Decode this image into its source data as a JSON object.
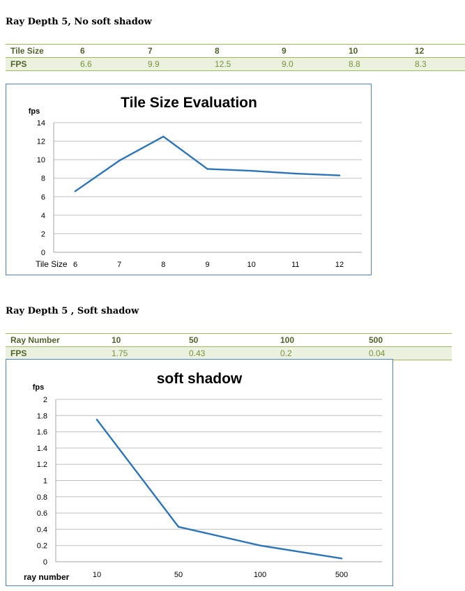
{
  "section1": {
    "heading": "Ray Depth 5, No soft shadow",
    "table": {
      "header": [
        "Tile Size",
        "6",
        "7",
        "8",
        "9",
        "10",
        "12"
      ],
      "row": [
        "FPS",
        "6.6",
        "9.9",
        "12.5",
        "9.0",
        "8.8",
        "8.3"
      ]
    }
  },
  "section2": {
    "heading": "Ray Depth 5 , Soft shadow",
    "table": {
      "header": [
        "Ray Number",
        "10",
        "50",
        "100",
        "500"
      ],
      "row": [
        "FPS",
        "1.75",
        "0.43",
        "0.2",
        "0.04"
      ]
    }
  },
  "colors": {
    "line": "#2e75b6",
    "grid": "#c0c0c0",
    "border": "#4f81bd",
    "table_accent": "#9bbb59",
    "table_fill": "#ebf1de"
  },
  "chart_data": [
    {
      "type": "line",
      "title": "Tile Size Evaluation",
      "ylabel": "fps",
      "xlabel": "Tile Size",
      "categories": [
        "6",
        "7",
        "8",
        "9",
        "10",
        "11",
        "12"
      ],
      "values": [
        6.6,
        9.9,
        12.5,
        9.0,
        8.8,
        8.5,
        8.3
      ],
      "ylim": [
        0,
        14
      ],
      "yticks": [
        "0",
        "2",
        "4",
        "6",
        "8",
        "10",
        "12",
        "14"
      ],
      "grid": true,
      "legend": "none"
    },
    {
      "type": "line",
      "title": "soft shadow",
      "ylabel": "fps",
      "xlabel": "ray number",
      "categories": [
        "10",
        "50",
        "100",
        "500"
      ],
      "values": [
        1.75,
        0.43,
        0.2,
        0.04
      ],
      "ylim": [
        0,
        2
      ],
      "yticks": [
        "0",
        "0.2",
        "0.4",
        "0.6",
        "0.8",
        "1",
        "1.2",
        "1.4",
        "1.6",
        "1.8",
        "2"
      ],
      "grid": true,
      "legend": "none"
    }
  ]
}
